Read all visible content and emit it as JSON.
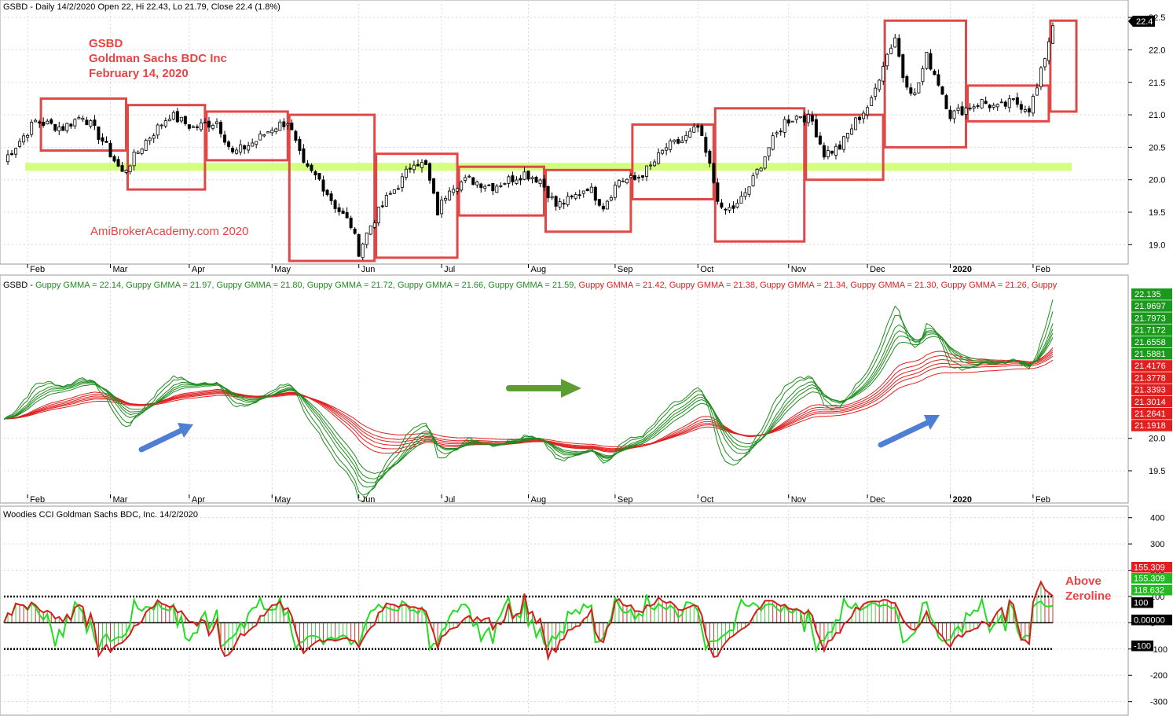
{
  "chart_data": [
    {
      "type": "candlestick",
      "panel": "price",
      "header": "GSBD - Daily 14/2/2020 Open 22, Hi 22.43, Lo 21.79, Close 22.4 (1.8%)",
      "annotation_lines": [
        "GSBD",
        "Goldman Sachs BDC Inc",
        "February 14, 2020"
      ],
      "watermark": "AmiBroker Academy.com   2020",
      "watermark_text": "AmiBrokerAcademy.com   2020",
      "x_labels": [
        "Feb",
        "Mar",
        "Apr",
        "May",
        "Jun",
        "Jul",
        "Aug",
        "Sep",
        "Oct",
        "Nov",
        "Dec",
        "2020",
        "Feb"
      ],
      "y_ticks": [
        "22.5",
        "22.0",
        "21.5",
        "21.0",
        "20.5",
        "20.0",
        "19.5",
        "19.0"
      ],
      "ylim": [
        18.75,
        22.55
      ],
      "last_price_tag": "22.4",
      "support_level": 20.2,
      "anchors": [
        [
          0,
          20.3
        ],
        [
          8,
          20.9
        ],
        [
          15,
          20.8
        ],
        [
          20,
          21.0
        ],
        [
          25,
          20.6
        ],
        [
          30,
          20.1
        ],
        [
          36,
          20.6
        ],
        [
          42,
          21.0
        ],
        [
          48,
          20.8
        ],
        [
          54,
          20.9
        ],
        [
          58,
          20.4
        ],
        [
          64,
          20.6
        ],
        [
          68,
          20.8
        ],
        [
          72,
          20.9
        ],
        [
          76,
          20.2
        ],
        [
          80,
          20.0
        ],
        [
          84,
          19.6
        ],
        [
          88,
          19.3
        ],
        [
          90,
          18.9
        ],
        [
          93,
          19.3
        ],
        [
          97,
          19.7
        ],
        [
          101,
          20.0
        ],
        [
          104,
          20.3
        ],
        [
          107,
          20.2
        ],
        [
          110,
          19.5
        ],
        [
          113,
          19.9
        ],
        [
          118,
          20.0
        ],
        [
          124,
          19.9
        ],
        [
          128,
          20.0
        ],
        [
          132,
          20.1
        ],
        [
          136,
          20.0
        ],
        [
          140,
          19.6
        ],
        [
          144,
          19.7
        ],
        [
          148,
          19.9
        ],
        [
          152,
          19.6
        ],
        [
          156,
          20.0
        ],
        [
          160,
          20.0
        ],
        [
          164,
          20.2
        ],
        [
          168,
          20.5
        ],
        [
          172,
          20.6
        ],
        [
          176,
          20.8
        ],
        [
          179,
          20.2
        ],
        [
          182,
          19.5
        ],
        [
          186,
          19.6
        ],
        [
          190,
          20.0
        ],
        [
          194,
          20.5
        ],
        [
          198,
          20.9
        ],
        [
          202,
          21.0
        ],
        [
          205,
          20.9
        ],
        [
          208,
          20.4
        ],
        [
          212,
          20.5
        ],
        [
          216,
          20.9
        ],
        [
          220,
          21.2
        ],
        [
          223,
          21.8
        ],
        [
          226,
          22.2
        ],
        [
          228,
          21.6
        ],
        [
          231,
          21.3
        ],
        [
          234,
          21.9
        ],
        [
          237,
          21.5
        ],
        [
          240,
          21.0
        ],
        [
          244,
          21.1
        ],
        [
          248,
          21.2
        ],
        [
          252,
          21.1
        ],
        [
          256,
          21.2
        ],
        [
          260,
          21.1
        ],
        [
          262,
          21.4
        ],
        [
          264,
          21.9
        ],
        [
          266,
          22.4
        ]
      ],
      "boxes": [
        {
          "from": "2019-01-25",
          "to": "2019-02-28",
          "high": 21.25,
          "low": 20.45
        },
        {
          "from": "2019-03-01",
          "to": "2019-03-29",
          "high": 21.15,
          "low": 19.85
        },
        {
          "from": "2019-04-01",
          "to": "2019-04-30",
          "high": 21.05,
          "low": 20.3
        },
        {
          "from": "2019-05-01",
          "to": "2019-05-31",
          "high": 21.0,
          "low": 18.75
        },
        {
          "from": "2019-06-03",
          "to": "2019-06-28",
          "high": 20.4,
          "low": 18.8
        },
        {
          "from": "2019-07-01",
          "to": "2019-07-31",
          "high": 20.2,
          "low": 19.45
        },
        {
          "from": "2019-08-01",
          "to": "2019-08-30",
          "high": 20.15,
          "low": 19.2
        },
        {
          "from": "2019-09-03",
          "to": "2019-09-30",
          "high": 20.85,
          "low": 19.7
        },
        {
          "from": "2019-10-01",
          "to": "2019-10-31",
          "high": 21.1,
          "low": 19.05
        },
        {
          "from": "2019-11-01",
          "to": "2019-11-29",
          "high": 21.0,
          "low": 20.0
        },
        {
          "from": "2019-12-02",
          "to": "2019-12-31",
          "high": 22.45,
          "low": 20.5
        },
        {
          "from": "2020-01-02",
          "to": "2020-01-31",
          "high": 21.45,
          "low": 20.9
        },
        {
          "from": "2020-02-03",
          "to": "2020-02-14",
          "high": 22.45,
          "low": 21.05
        }
      ]
    },
    {
      "type": "line",
      "panel": "gmma",
      "header": "GSBD - Guppy GMMA = 22.14, Guppy GMMA = 21.97, Guppy GMMA = 21.80, Guppy GMMA = 21.72, Guppy GMMA = 21.66, Guppy GMMA = 21.59, Guppy GMMA = 21.42, Guppy GMMA = 21.38, Guppy GMMA = 21.34, Guppy GMMA = 21.30, Guppy GMMA = 21.26, Guppy",
      "header_parts": [
        {
          "text": "GSBD - ",
          "color": "#000000"
        },
        {
          "text": "Guppy GMMA = 22.14, ",
          "color": "#1f8c1f"
        },
        {
          "text": "Guppy GMMA = 21.97, ",
          "color": "#1f8c1f"
        },
        {
          "text": "Guppy GMMA = 21.80, ",
          "color": "#1f8c1f"
        },
        {
          "text": "Guppy GMMA = 21.72, ",
          "color": "#1f8c1f"
        },
        {
          "text": "Guppy GMMA = 21.66, ",
          "color": "#1f8c1f"
        },
        {
          "text": "Guppy GMMA = 21.59, ",
          "color": "#1f8c1f"
        },
        {
          "text": "Guppy GMMA = 21.42, ",
          "color": "#e02020"
        },
        {
          "text": "Guppy GMMA = 21.38, ",
          "color": "#e02020"
        },
        {
          "text": "Guppy GMMA = 21.34, ",
          "color": "#e02020"
        },
        {
          "text": "Guppy GMMA = 21.30, ",
          "color": "#e02020"
        },
        {
          "text": "Guppy GMMA = 21.26, ",
          "color": "#e02020"
        },
        {
          "text": "Guppy",
          "color": "#e02020"
        }
      ],
      "x_labels": [
        "Feb",
        "Mar",
        "Apr",
        "May",
        "Jun",
        "Jul",
        "Aug",
        "Sep",
        "Oct",
        "Nov",
        "Dec",
        "2020",
        "Feb"
      ],
      "y_ticks": [
        "20.0",
        "19.5"
      ],
      "ylim": [
        19.1,
        22.25
      ],
      "short_term_colors": "#1f8c1f",
      "long_term_colors": "#e02020",
      "value_tags_green": [
        "22.135",
        "21.9697",
        "21.7973",
        "21.7172",
        "21.6558",
        "21.5881"
      ],
      "value_tags_red": [
        "21.4176",
        "21.3778",
        "21.3393",
        "21.3014",
        "21.2641",
        "21.1918"
      ],
      "series": [
        {
          "name": "Guppy GMMA",
          "group": "short",
          "value": 22.14
        },
        {
          "name": "Guppy GMMA",
          "group": "short",
          "value": 21.97
        },
        {
          "name": "Guppy GMMA",
          "group": "short",
          "value": 21.8
        },
        {
          "name": "Guppy GMMA",
          "group": "short",
          "value": 21.72
        },
        {
          "name": "Guppy GMMA",
          "group": "short",
          "value": 21.66
        },
        {
          "name": "Guppy GMMA",
          "group": "short",
          "value": 21.59
        },
        {
          "name": "Guppy GMMA",
          "group": "long",
          "value": 21.42
        },
        {
          "name": "Guppy GMMA",
          "group": "long",
          "value": 21.38
        },
        {
          "name": "Guppy GMMA",
          "group": "long",
          "value": 21.34
        },
        {
          "name": "Guppy GMMA",
          "group": "long",
          "value": 21.3
        },
        {
          "name": "Guppy GMMA",
          "group": "long",
          "value": 21.26
        }
      ]
    },
    {
      "type": "line",
      "panel": "cci",
      "header": "Woodies CCI  Goldman Sachs BDC, Inc. 14/2/2020",
      "x_labels": [
        "Feb",
        "Mar",
        "Apr",
        "May",
        "Jun",
        "Jul",
        "Aug",
        "Sep",
        "Oct",
        "Nov",
        "Dec",
        "2020",
        "Feb"
      ],
      "y_ticks": [
        "400",
        "300",
        "200",
        "100",
        "0",
        "-100",
        "-200",
        "-300"
      ],
      "ylim": [
        -340,
        420
      ],
      "reference_lines": [
        100,
        0,
        -100
      ],
      "annotation": [
        "Above",
        "Zeroline"
      ],
      "value_tags": [
        {
          "text": "155.309",
          "bg": "#e02020"
        },
        {
          "text": "155.309",
          "bg": "#22bb22"
        },
        {
          "text": "118.632",
          "bg": "#22bb22"
        },
        {
          "text": "100",
          "bg": "#000000"
        },
        {
          "text": "0.00000",
          "bg": "#000000"
        },
        {
          "text": "-100",
          "bg": "#000000"
        }
      ]
    }
  ]
}
